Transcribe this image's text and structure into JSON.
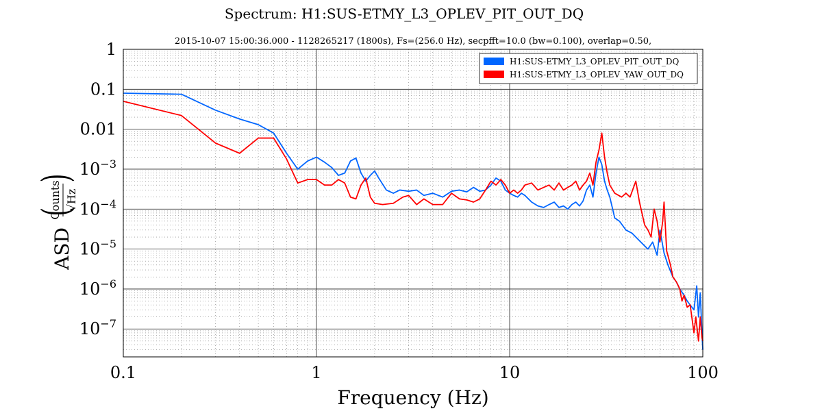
{
  "chart_data": {
    "type": "line",
    "title": "Spectrum: H1:SUS-ETMY_L3_OPLEV_PIT_OUT_DQ",
    "subtitle": "2015-10-07 15:00:36.000 - 1128265217 (1800s), Fs=(256.0 Hz), secpfft=10.0 (bw=0.100), overlap=0.50,",
    "xlabel": "Frequency (Hz)",
    "ylabel": "ASD",
    "ylabel_unit_numerator": "Counts",
    "ylabel_unit_denominator": "√Hz",
    "x_scale": "log",
    "y_scale": "log",
    "xlim": [
      0.1,
      100
    ],
    "ylim": [
      2e-08,
      1
    ],
    "grid": true,
    "legend_position": "top-right",
    "x_ticks": [
      {
        "value": 0.1,
        "label": "0.1"
      },
      {
        "value": 1,
        "label": "1"
      },
      {
        "value": 10,
        "label": "10"
      },
      {
        "value": 100,
        "label": "100"
      }
    ],
    "y_ticks": [
      {
        "value": 1,
        "label": "1",
        "exp": ""
      },
      {
        "value": 0.1,
        "label": "0.1",
        "exp": ""
      },
      {
        "value": 0.01,
        "label": "0.01",
        "exp": ""
      },
      {
        "value": 0.001,
        "label": "10",
        "exp": "−3"
      },
      {
        "value": 0.0001,
        "label": "10",
        "exp": "−4"
      },
      {
        "value": 1e-05,
        "label": "10",
        "exp": "−5"
      },
      {
        "value": 1e-06,
        "label": "10",
        "exp": "−6"
      },
      {
        "value": 1e-07,
        "label": "10",
        "exp": "−7"
      }
    ],
    "series": [
      {
        "name": "H1:SUS-ETMY_L3_OPLEV_PIT_OUT_DQ",
        "color": "#0066ff",
        "points": [
          [
            0.1,
            0.08
          ],
          [
            0.2,
            0.075
          ],
          [
            0.3,
            0.03
          ],
          [
            0.4,
            0.018
          ],
          [
            0.5,
            0.013
          ],
          [
            0.6,
            0.008
          ],
          [
            0.7,
            0.0025
          ],
          [
            0.8,
            0.001
          ],
          [
            0.9,
            0.0016
          ],
          [
            1.0,
            0.002
          ],
          [
            1.1,
            0.0015
          ],
          [
            1.2,
            0.0011
          ],
          [
            1.3,
            0.0007
          ],
          [
            1.4,
            0.0008
          ],
          [
            1.5,
            0.0016
          ],
          [
            1.6,
            0.0019
          ],
          [
            1.7,
            0.0008
          ],
          [
            1.8,
            0.0005
          ],
          [
            1.9,
            0.0007
          ],
          [
            2.0,
            0.0009
          ],
          [
            2.1,
            0.0006
          ],
          [
            2.3,
            0.0003
          ],
          [
            2.5,
            0.00025
          ],
          [
            2.7,
            0.0003
          ],
          [
            3.0,
            0.00028
          ],
          [
            3.3,
            0.0003
          ],
          [
            3.6,
            0.00022
          ],
          [
            4.0,
            0.00025
          ],
          [
            4.5,
            0.0002
          ],
          [
            5.0,
            0.00028
          ],
          [
            5.5,
            0.0003
          ],
          [
            6.0,
            0.00027
          ],
          [
            6.5,
            0.00035
          ],
          [
            7.0,
            0.00028
          ],
          [
            7.5,
            0.0003
          ],
          [
            8.0,
            0.0004
          ],
          [
            8.5,
            0.0006
          ],
          [
            9.0,
            0.0005
          ],
          [
            9.5,
            0.0003
          ],
          [
            10,
            0.00025
          ],
          [
            10.5,
            0.00022
          ],
          [
            11,
            0.0002
          ],
          [
            11.5,
            0.00025
          ],
          [
            12,
            0.00022
          ],
          [
            13,
            0.00015
          ],
          [
            14,
            0.00012
          ],
          [
            15,
            0.00011
          ],
          [
            16,
            0.00013
          ],
          [
            17,
            0.00015
          ],
          [
            18,
            0.00011
          ],
          [
            19,
            0.00012
          ],
          [
            20,
            0.0001
          ],
          [
            21,
            0.00013
          ],
          [
            22,
            0.00015
          ],
          [
            23,
            0.00012
          ],
          [
            24,
            0.00016
          ],
          [
            25,
            0.0003
          ],
          [
            26,
            0.0004
          ],
          [
            27,
            0.0002
          ],
          [
            28,
            0.0008
          ],
          [
            29,
            0.002
          ],
          [
            30,
            0.0013
          ],
          [
            31,
            0.0005
          ],
          [
            32,
            0.0003
          ],
          [
            33,
            0.0002
          ],
          [
            35,
            6e-05
          ],
          [
            37,
            5e-05
          ],
          [
            40,
            3e-05
          ],
          [
            43,
            2.5e-05
          ],
          [
            46,
            1.8e-05
          ],
          [
            50,
            1.2e-05
          ],
          [
            52,
            1e-05
          ],
          [
            55,
            1.5e-05
          ],
          [
            58,
            7e-06
          ],
          [
            60,
            3e-05
          ],
          [
            63,
            8e-06
          ],
          [
            66,
            4e-06
          ],
          [
            70,
            2e-06
          ],
          [
            73,
            1.5e-06
          ],
          [
            76,
            1e-06
          ],
          [
            80,
            7e-07
          ],
          [
            83,
            5e-07
          ],
          [
            86,
            4e-07
          ],
          [
            90,
            3e-07
          ],
          [
            93,
            1.2e-06
          ],
          [
            95,
            2e-07
          ],
          [
            97,
            8e-07
          ],
          [
            99,
            8e-08
          ],
          [
            100,
            3e-08
          ]
        ]
      },
      {
        "name": "H1:SUS-ETMY_L3_OPLEV_YAW_OUT_DQ",
        "color": "#ff0000",
        "points": [
          [
            0.1,
            0.05
          ],
          [
            0.2,
            0.022
          ],
          [
            0.3,
            0.0045
          ],
          [
            0.4,
            0.0025
          ],
          [
            0.5,
            0.006
          ],
          [
            0.6,
            0.006
          ],
          [
            0.7,
            0.0018
          ],
          [
            0.8,
            0.00045
          ],
          [
            0.9,
            0.00055
          ],
          [
            1.0,
            0.00055
          ],
          [
            1.1,
            0.0004
          ],
          [
            1.2,
            0.0004
          ],
          [
            1.3,
            0.00055
          ],
          [
            1.4,
            0.00045
          ],
          [
            1.5,
            0.0002
          ],
          [
            1.6,
            0.00018
          ],
          [
            1.7,
            0.0004
          ],
          [
            1.8,
            0.0006
          ],
          [
            1.9,
            0.0002
          ],
          [
            2.0,
            0.00014
          ],
          [
            2.2,
            0.00013
          ],
          [
            2.5,
            0.00014
          ],
          [
            2.8,
            0.0002
          ],
          [
            3.0,
            0.00022
          ],
          [
            3.3,
            0.00013
          ],
          [
            3.6,
            0.00018
          ],
          [
            4.0,
            0.00013
          ],
          [
            4.5,
            0.00013
          ],
          [
            5.0,
            0.00025
          ],
          [
            5.5,
            0.00018
          ],
          [
            6.0,
            0.00017
          ],
          [
            6.5,
            0.00015
          ],
          [
            7.0,
            0.00018
          ],
          [
            7.5,
            0.0003
          ],
          [
            8.0,
            0.0005
          ],
          [
            8.5,
            0.0004
          ],
          [
            9.0,
            0.00055
          ],
          [
            9.5,
            0.0004
          ],
          [
            10,
            0.00025
          ],
          [
            10.5,
            0.0003
          ],
          [
            11,
            0.00025
          ],
          [
            11.5,
            0.0003
          ],
          [
            12,
            0.0004
          ],
          [
            13,
            0.00045
          ],
          [
            14,
            0.0003
          ],
          [
            15,
            0.00035
          ],
          [
            16,
            0.0004
          ],
          [
            17,
            0.0003
          ],
          [
            18,
            0.00045
          ],
          [
            19,
            0.0003
          ],
          [
            20,
            0.00035
          ],
          [
            21,
            0.0004
          ],
          [
            22,
            0.0005
          ],
          [
            23,
            0.0003
          ],
          [
            24,
            0.0004
          ],
          [
            25,
            0.0005
          ],
          [
            26,
            0.0008
          ],
          [
            27,
            0.0004
          ],
          [
            28,
            0.0015
          ],
          [
            29,
            0.003
          ],
          [
            30,
            0.008
          ],
          [
            31,
            0.002
          ],
          [
            32,
            0.0008
          ],
          [
            33,
            0.0004
          ],
          [
            35,
            0.00025
          ],
          [
            38,
            0.0002
          ],
          [
            40,
            0.00025
          ],
          [
            42,
            0.0002
          ],
          [
            45,
            0.0005
          ],
          [
            47,
            0.00015
          ],
          [
            50,
            4e-05
          ],
          [
            52,
            3e-05
          ],
          [
            54,
            2e-05
          ],
          [
            56,
            0.0001
          ],
          [
            58,
            5e-05
          ],
          [
            60,
            1.5e-05
          ],
          [
            62,
            5e-05
          ],
          [
            63,
            0.00015
          ],
          [
            65,
            9e-06
          ],
          [
            68,
            4e-06
          ],
          [
            70,
            2e-06
          ],
          [
            73,
            1.5e-06
          ],
          [
            76,
            1e-06
          ],
          [
            78,
            5e-07
          ],
          [
            80,
            7e-07
          ],
          [
            83,
            3.5e-07
          ],
          [
            86,
            4e-07
          ],
          [
            90,
            8e-08
          ],
          [
            92,
            2e-07
          ],
          [
            95,
            5e-08
          ],
          [
            97,
            2e-07
          ],
          [
            99,
            6e-08
          ],
          [
            100,
            5e-08
          ]
        ]
      }
    ]
  }
}
